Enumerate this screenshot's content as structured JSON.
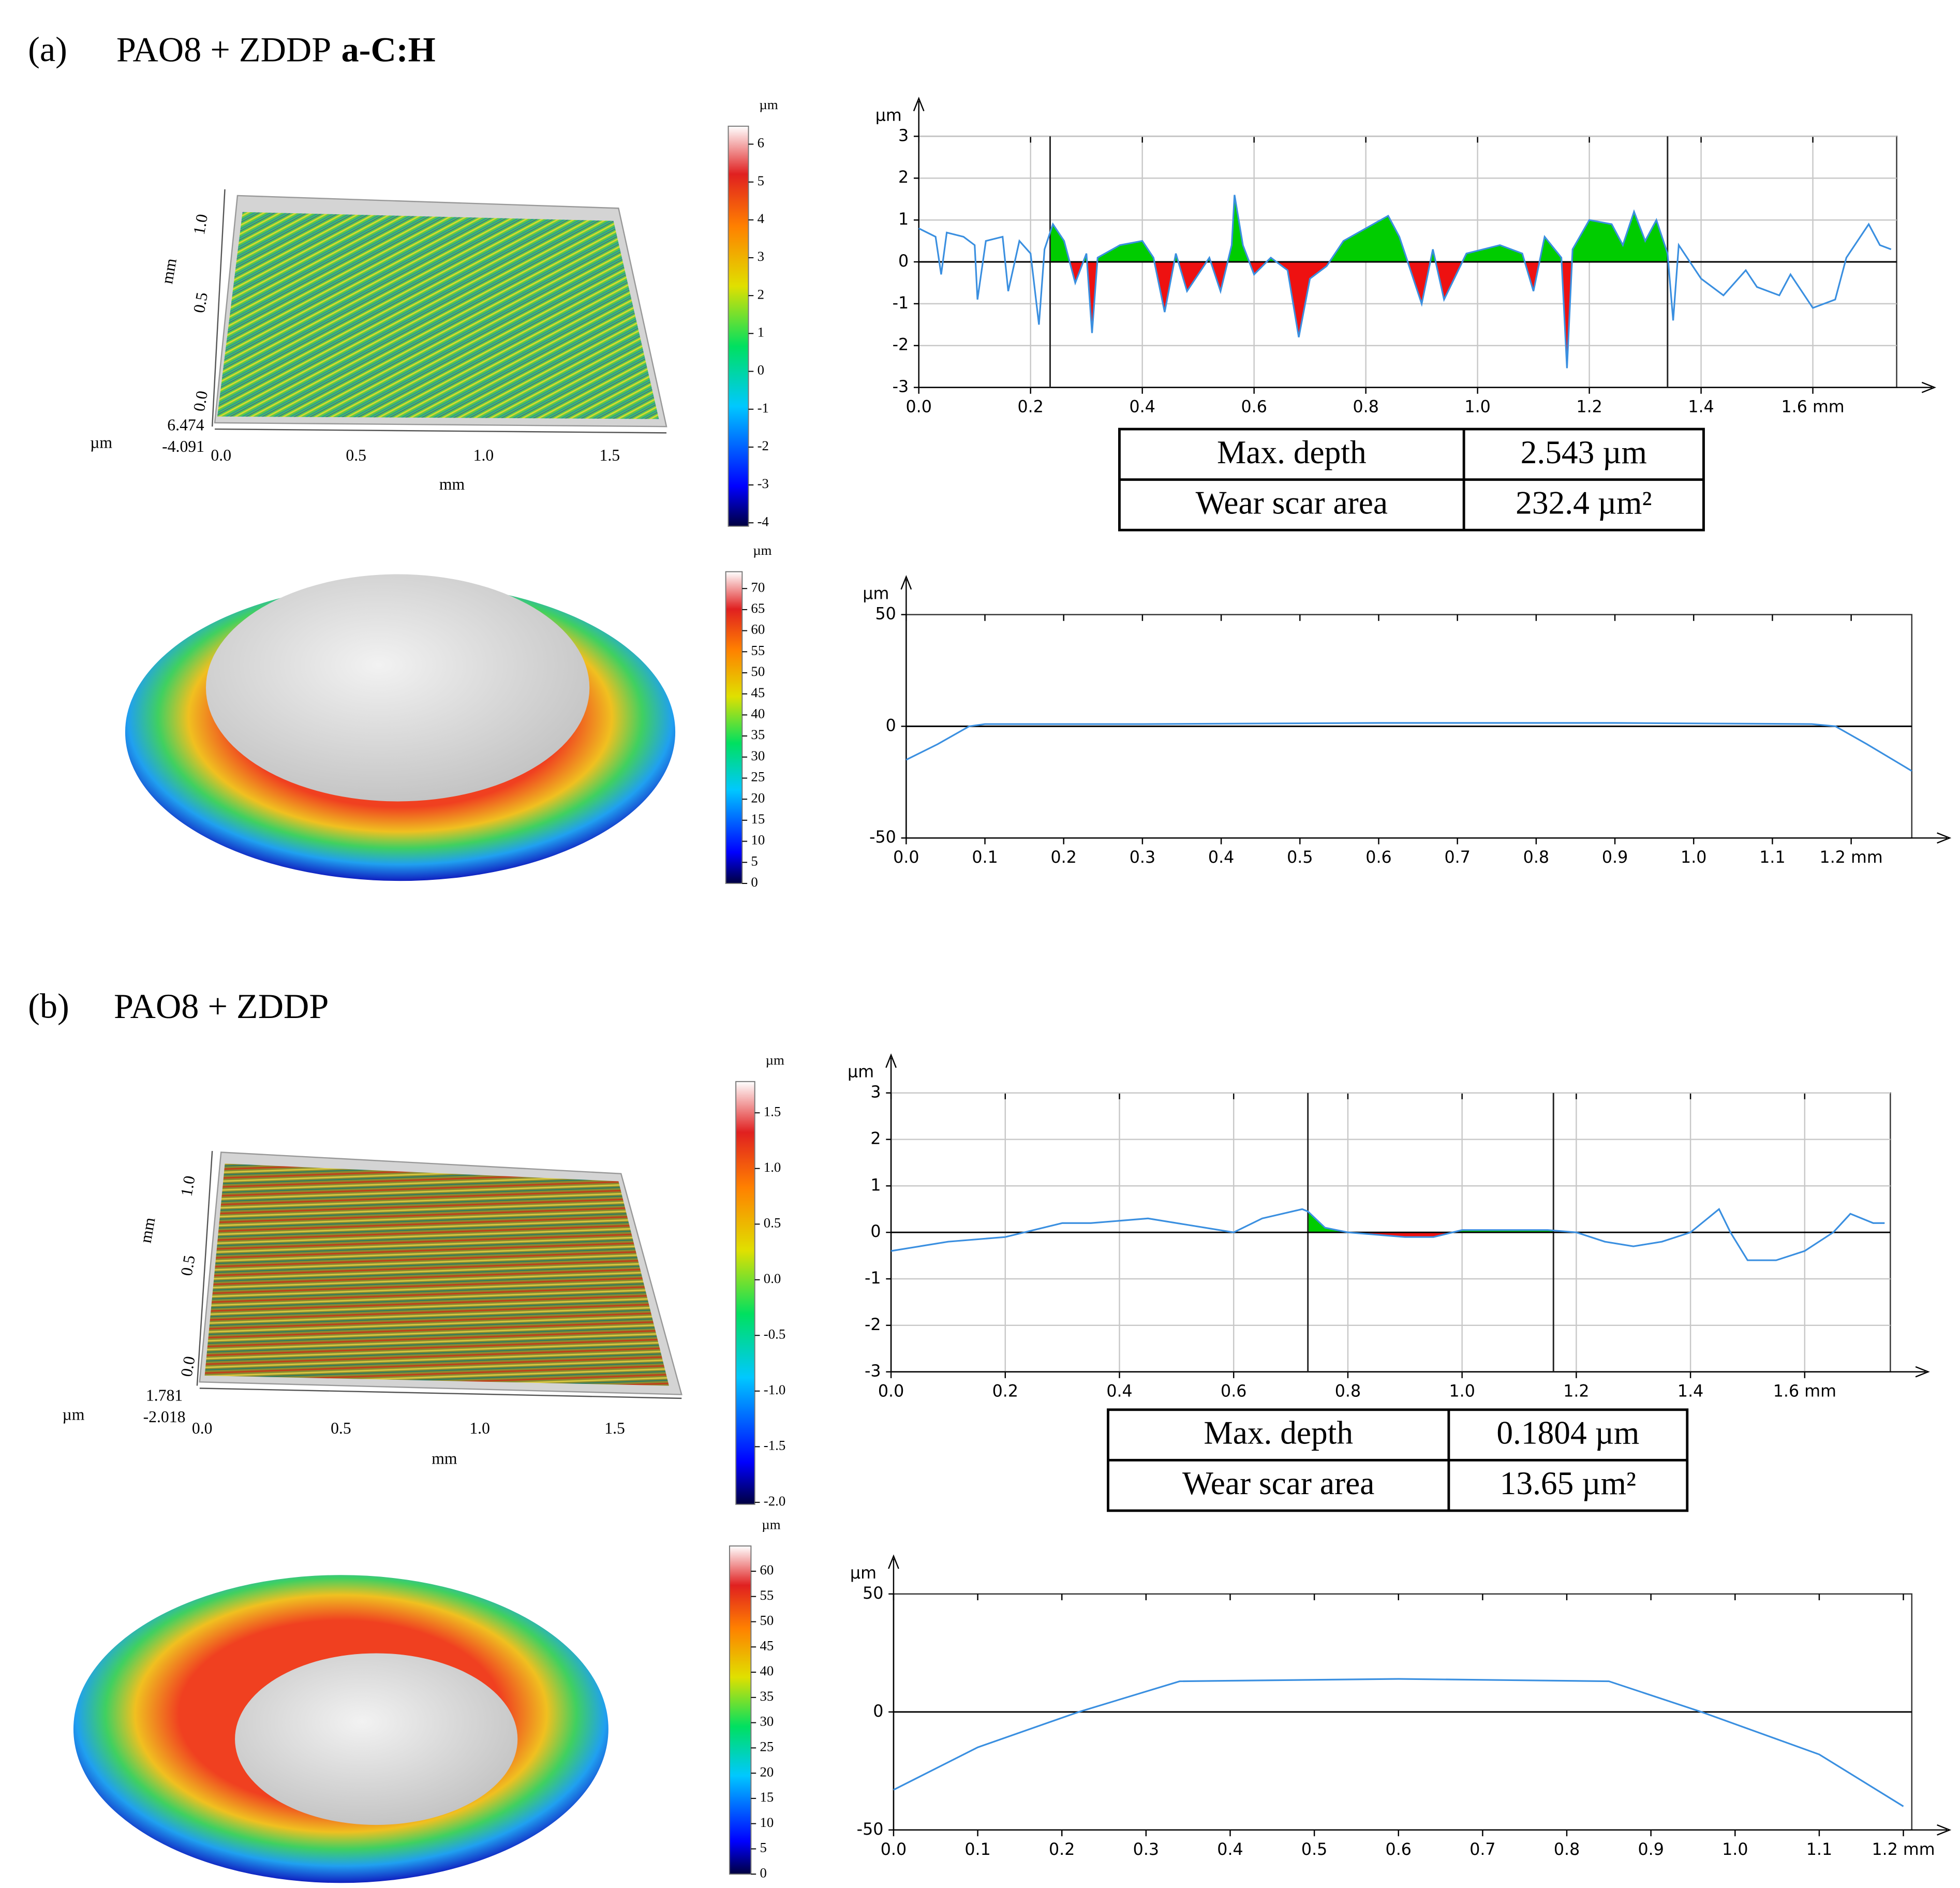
{
  "panels": [
    {
      "label": "(a)",
      "title": "PAO8 + ZDDP",
      "title_bold": "a-C:H",
      "surface_axes": {
        "y_label": "mm",
        "y_ticks": [
          "0.0",
          "0.5",
          "1.0"
        ],
        "x_ticks": [
          "0.0",
          "0.5",
          "1.0",
          "1.5"
        ],
        "x_label": "mm",
        "z_label": "µm"
      },
      "surface_colorbar": {
        "unit": "µm",
        "lim": [
          -4.091,
          6.474
        ],
        "ticks": [
          -4,
          -3,
          -2,
          -1,
          0,
          1,
          2,
          3,
          4,
          5,
          6
        ]
      },
      "ball_colorbar": {
        "unit": "µm",
        "lim": [
          0,
          74
        ],
        "ticks": [
          0,
          5,
          10,
          15,
          20,
          25,
          30,
          35,
          40,
          45,
          50,
          55,
          60,
          65,
          70
        ]
      },
      "table": {
        "rows": [
          [
            "Max. depth",
            "2.543 µm"
          ],
          [
            "Wear scar area",
            "232.4 µm²"
          ]
        ]
      }
    },
    {
      "label": "(b)",
      "title": "PAO8 + ZDDP",
      "surface_axes": {
        "y_label": "mm",
        "y_ticks": [
          "0.0",
          "0.5",
          "1.0"
        ],
        "x_ticks": [
          "0.0",
          "0.5",
          "1.0",
          "1.5"
        ],
        "x_label": "mm",
        "z_label": "µm"
      },
      "surface_colorbar": {
        "unit": "µm",
        "lim": [
          -2.018,
          1.781
        ],
        "ticks": [
          {
            "value": -2,
            "label": "-2.0"
          },
          -1.5,
          {
            "value": -1,
            "label": "-1.0"
          },
          -0.5,
          {
            "value": 0,
            "label": "0.0"
          },
          0.5,
          {
            "value": 1,
            "label": "1.0"
          },
          1.5
        ]
      },
      "ball_colorbar": {
        "unit": "µm",
        "lim": [
          0,
          65
        ],
        "ticks": [
          0,
          5,
          10,
          15,
          20,
          25,
          30,
          35,
          40,
          45,
          50,
          55,
          60
        ]
      },
      "table": {
        "rows": [
          [
            "Max. depth",
            "0.1804 µm"
          ],
          [
            "Wear scar area",
            "13.65 µm²"
          ]
        ]
      }
    }
  ],
  "chart_data": [
    {
      "type": "line",
      "y_label": "µm",
      "color": "#3a8fe0",
      "grid": true,
      "above_color": "#00cc00",
      "below_color": "#ee1111",
      "xlim": [
        0,
        1.75
      ],
      "ylim": [
        -3,
        3
      ],
      "xticks": [
        {
          "value": 0,
          "label": "0.0"
        },
        0.2,
        0.4,
        0.6,
        0.8,
        {
          "value": 1,
          "label": "1.0"
        },
        1.2,
        1.4,
        {
          "value": 1.6,
          "label": "1.6 mm"
        }
      ],
      "yticks": [
        -3,
        -2,
        -1,
        0,
        1,
        2,
        3
      ],
      "cursors": [
        0.235,
        1.34
      ],
      "x": [
        0,
        0.03,
        0.04,
        0.05,
        0.08,
        0.1,
        0.105,
        0.12,
        0.15,
        0.16,
        0.18,
        0.2,
        0.215,
        0.225,
        0.24,
        0.26,
        0.28,
        0.3,
        0.31,
        0.32,
        0.36,
        0.4,
        0.42,
        0.44,
        0.46,
        0.48,
        0.52,
        0.54,
        0.56,
        0.565,
        0.58,
        0.6,
        0.63,
        0.66,
        0.68,
        0.7,
        0.73,
        0.76,
        0.8,
        0.84,
        0.86,
        0.9,
        0.92,
        0.94,
        0.98,
        1.04,
        1.08,
        1.1,
        1.12,
        1.15,
        1.16,
        1.17,
        1.2,
        1.24,
        1.26,
        1.28,
        1.3,
        1.32,
        1.34,
        1.35,
        1.36,
        1.4,
        1.44,
        1.48,
        1.5,
        1.54,
        1.56,
        1.6,
        1.64,
        1.66,
        1.7,
        1.72,
        1.74
      ],
      "values": [
        0.8,
        0.6,
        -0.3,
        0.7,
        0.6,
        0.4,
        -0.9,
        0.5,
        0.6,
        -0.7,
        0.5,
        0.2,
        -1.5,
        0.3,
        0.9,
        0.5,
        -0.5,
        0.2,
        -1.7,
        0.1,
        0.4,
        0.5,
        0.1,
        -1.2,
        0.2,
        -0.7,
        0.1,
        -0.7,
        0.4,
        1.6,
        0.4,
        -0.3,
        0.1,
        -0.2,
        -1.8,
        -0.4,
        -0.1,
        0.5,
        0.8,
        1.1,
        0.6,
        -1.0,
        0.3,
        -0.9,
        0.2,
        0.4,
        0.2,
        -0.7,
        0.6,
        0.1,
        -2.54,
        0.3,
        1.0,
        0.9,
        0.4,
        1.2,
        0.5,
        1.0,
        0.2,
        -1.4,
        0.4,
        -0.4,
        -0.8,
        -0.2,
        -0.6,
        -0.8,
        -0.3,
        -1.1,
        -0.9,
        0.1,
        0.9,
        0.4,
        0.3
      ]
    },
    {
      "type": "line",
      "y_label": "µm",
      "color": "#3a8fe0",
      "grid": false,
      "xlim": [
        0,
        1.277
      ],
      "ylim": [
        -50,
        50
      ],
      "xticks": [
        {
          "value": 0,
          "label": "0.0"
        },
        0.1,
        0.2,
        0.3,
        0.4,
        0.5,
        0.6,
        0.7,
        0.8,
        0.9,
        {
          "value": 1,
          "label": "1.0"
        },
        1.1,
        {
          "value": 1.2,
          "label": "1.2 mm"
        }
      ],
      "yticks": [
        -50,
        0,
        50
      ],
      "x": [
        0,
        0.04,
        0.08,
        0.1,
        0.3,
        0.6,
        0.9,
        1.15,
        1.18,
        1.22,
        1.277
      ],
      "values": [
        -15,
        -8,
        0,
        1,
        1,
        1.5,
        1.5,
        1,
        0,
        -8,
        -20
      ]
    },
    {
      "type": "line",
      "y_label": "µm",
      "color": "#3a8fe0",
      "grid": true,
      "above_color": "#00cc00",
      "below_color": "#ee1111",
      "xlim": [
        0,
        1.75
      ],
      "ylim": [
        -3,
        3
      ],
      "xticks": [
        {
          "value": 0,
          "label": "0.0"
        },
        0.2,
        0.4,
        0.6,
        0.8,
        {
          "value": 1,
          "label": "1.0"
        },
        1.2,
        1.4,
        {
          "value": 1.6,
          "label": "1.6 mm"
        }
      ],
      "yticks": [
        -3,
        -2,
        -1,
        0,
        1,
        2,
        3
      ],
      "cursors": [
        0.73,
        1.16
      ],
      "x": [
        0,
        0.05,
        0.1,
        0.2,
        0.3,
        0.35,
        0.45,
        0.55,
        0.6,
        0.65,
        0.72,
        0.73,
        0.76,
        0.8,
        0.85,
        0.9,
        0.95,
        1.0,
        1.05,
        1.1,
        1.15,
        1.2,
        1.25,
        1.3,
        1.35,
        1.4,
        1.45,
        1.47,
        1.5,
        1.55,
        1.6,
        1.65,
        1.68,
        1.72,
        1.74
      ],
      "values": [
        -0.4,
        -0.3,
        -0.2,
        -0.1,
        0.2,
        0.2,
        0.3,
        0.1,
        0.0,
        0.3,
        0.5,
        0.45,
        0.1,
        0.0,
        -0.05,
        -0.1,
        -0.1,
        0.05,
        0.05,
        0.05,
        0.05,
        0.0,
        -0.2,
        -0.3,
        -0.2,
        0.0,
        0.5,
        0.0,
        -0.6,
        -0.6,
        -0.4,
        0.0,
        0.4,
        0.2,
        0.2
      ]
    },
    {
      "type": "line",
      "y_label": "µm",
      "color": "#3a8fe0",
      "grid": false,
      "xlim": [
        0,
        1.21
      ],
      "ylim": [
        -50,
        50
      ],
      "xticks": [
        {
          "value": 0,
          "label": "0.0"
        },
        0.1,
        0.2,
        0.3,
        0.4,
        0.5,
        0.6,
        0.7,
        0.8,
        0.9,
        {
          "value": 1,
          "label": "1.0"
        },
        1.1,
        {
          "value": 1.2,
          "label": "1.2 mm"
        }
      ],
      "yticks": [
        -50,
        0,
        50
      ],
      "x": [
        0,
        0.1,
        0.22,
        0.34,
        0.6,
        0.85,
        0.96,
        1.1,
        1.2
      ],
      "values": [
        -33,
        -15,
        0,
        13,
        14,
        13,
        0,
        -18,
        -40
      ]
    }
  ]
}
